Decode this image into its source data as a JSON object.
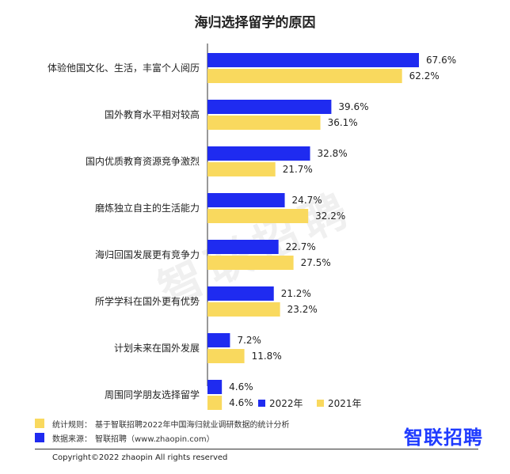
{
  "chart_data": {
    "type": "bar",
    "orientation": "horizontal",
    "title": "海归选择留学的原因",
    "categories": [
      "体验他国文化、生活，丰富个人阅历",
      "国外教育水平相对较高",
      "国内优质教育资源竞争激烈",
      "磨炼独立自主的生活能力",
      "海归回国发展更有竞争力",
      "所学学科在国外更有优势",
      "计划未来在国外发展",
      "周围同学朋友选择留学"
    ],
    "series": [
      {
        "name": "2022年",
        "color": "#1f2bf0",
        "values": [
          67.6,
          39.6,
          32.8,
          24.7,
          22.7,
          21.2,
          7.2,
          4.6
        ],
        "labels": [
          "67.6%",
          "39.6%",
          "32.8%",
          "24.7%",
          "22.7%",
          "21.2%",
          "7.2%",
          "4.6%"
        ]
      },
      {
        "name": "2021年",
        "color": "#f9d95e",
        "values": [
          62.2,
          36.1,
          21.7,
          32.2,
          27.5,
          23.2,
          11.8,
          4.6
        ],
        "labels": [
          "62.2%",
          "36.1%",
          "21.7%",
          "32.2%",
          "27.5%",
          "23.2%",
          "11.8%",
          "4.6%"
        ]
      }
    ],
    "xlim": [
      0,
      67.6
    ],
    "legend": "bottom-right"
  },
  "notes": [
    {
      "label": "统计规则：",
      "text": "基于智联招聘2022年中国海归就业调研数据的统计分析",
      "color": "#f9d95e"
    },
    {
      "label": "数据来源：",
      "text": "智联招聘（www.zhaopin.com）",
      "color": "#1f2bf0"
    }
  ],
  "brand": "智联招聘",
  "watermark": "智联招聘",
  "copyright": "Copyright©2022 zhaopin All rights reserved"
}
